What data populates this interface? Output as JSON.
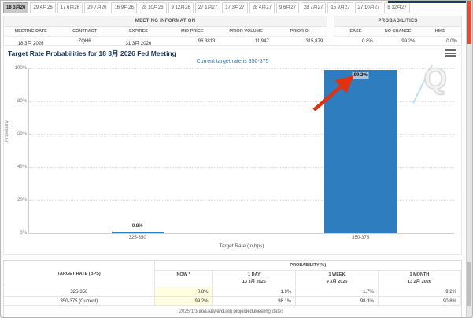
{
  "tabs": [
    "18 3月26",
    "29 4月26",
    "17 6月26",
    "29 7月26",
    "16 9月26",
    "28 10月26",
    "9 12月26",
    "27 1月27",
    "17 3月27",
    "28 4月27",
    "9 6月27",
    "28 7月27",
    "15 9月27",
    "27 10月27",
    "8 12月27"
  ],
  "meeting_info": {
    "title": "MEETING INFORMATION",
    "columns": [
      "MEETING DATE",
      "CONTRACT",
      "EXPIRES",
      "MID PRICE",
      "PRIOR VOLUME",
      "PRIOR OI"
    ],
    "values": [
      "18 3月 2026",
      "ZQH6",
      "31 3月 2026",
      "96.3813",
      "11,947",
      "315,879"
    ]
  },
  "probabilities": {
    "title": "PROBABILITIES",
    "columns": [
      "EASE",
      "NO CHANGE",
      "HIKE"
    ],
    "values": [
      "0.8%",
      "99.2%",
      "0.0%"
    ]
  },
  "chart": {
    "type": "bar",
    "title": "Target Rate Probabilities for 18 3月 2026 Fed Meeting",
    "subtitle": "Current target rate is 350-375",
    "ylabel": "Probability",
    "xlabel": "Target Rate (in bps)",
    "ylim": [
      0,
      100
    ],
    "yticks": [
      "100%",
      "80%",
      "60%",
      "40%",
      "20%",
      "0%"
    ],
    "categories": [
      "325-350",
      "350-375"
    ],
    "values": [
      0.8,
      99.2
    ],
    "bar_labels": [
      "0.8%",
      "99.2%"
    ],
    "bar_color": "#2e7dbe",
    "watermark_letter": "Q",
    "annotation": "red arrow pointing at 99.2% bar label"
  },
  "history_table": {
    "group_header": "PROBABILITY(%)",
    "rate_header": "TARGET RATE (BPS)",
    "col_now": "NOW *",
    "cols": [
      {
        "name": "1 DAY",
        "date": "13 3月 2026"
      },
      {
        "name": "1 WEEK",
        "date": "9 3月 2026"
      },
      {
        "name": "1 MONTH",
        "date": "13 2月 2026"
      }
    ],
    "rows": [
      {
        "rate": "325-350",
        "now": "0.8%",
        "day": "1.9%",
        "week": "1.7%",
        "month": "9.2%"
      },
      {
        "rate": "350-375 (Current)",
        "now": "99.2%",
        "day": "98.1%",
        "week": "98.3%",
        "month": "90.8%"
      }
    ],
    "footnote": "* Data as of 16 3月 2026 01:14:00 CT"
  },
  "page_footer": "2025/1/1 and forward are projected meeting dates",
  "colors": {
    "bar": "#2e7dbe",
    "now_highlight": "#ffffe0",
    "annotation_red": "#e03210",
    "title_navy": "#17365d",
    "subtitle_blue": "#2779bd"
  }
}
